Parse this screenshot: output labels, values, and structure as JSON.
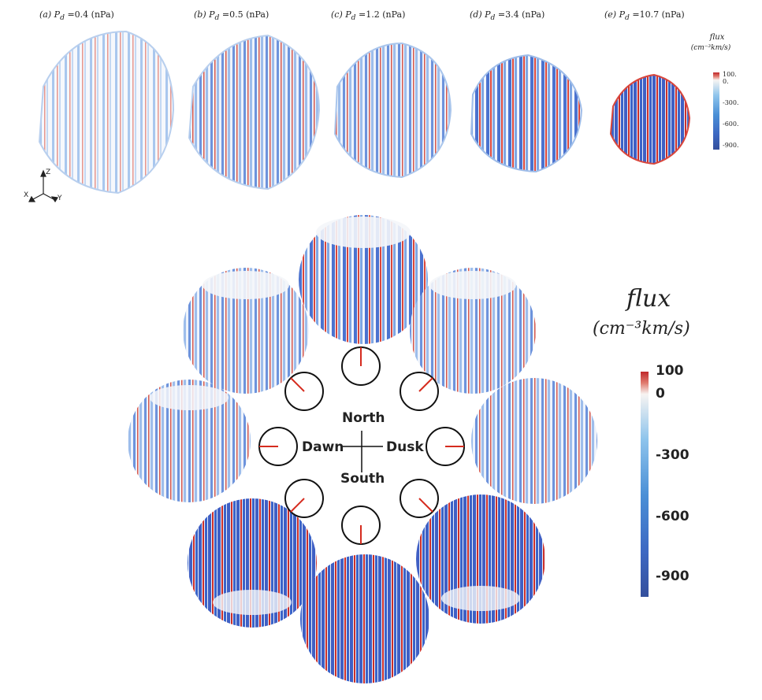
{
  "panels": [
    {
      "tag": "(a)",
      "pd_symbol": "P",
      "pd_sub": "d",
      "value": "=0.4",
      "unit": "(nPa)"
    },
    {
      "tag": "(b)",
      "pd_symbol": "P",
      "pd_sub": "d",
      "value": "=0.5",
      "unit": "(nPa)"
    },
    {
      "tag": "(c)",
      "pd_symbol": "P",
      "pd_sub": "d",
      "value": "=1.2",
      "unit": "(nPa)"
    },
    {
      "tag": "(d)",
      "pd_symbol": "P",
      "pd_sub": "d",
      "value": "=3.4",
      "unit": "(nPa)"
    },
    {
      "tag": "(e)",
      "pd_symbol": "P",
      "pd_sub": "d",
      "value": "=10.7",
      "unit": "(nPa)"
    }
  ],
  "small_colorbar": {
    "title": "flux",
    "unit": "(cm⁻³km/s)",
    "ticks": [
      "100.",
      "0.",
      "-300.",
      "-600.",
      "-900."
    ]
  },
  "big_colorbar": {
    "title": "flux",
    "unit": "(cm⁻³km/s)",
    "ticks": [
      "100",
      "0",
      "-300",
      "-600",
      "-900"
    ]
  },
  "axes_triad": {
    "z": "Z",
    "x": "X",
    "y": "Y"
  },
  "compass": {
    "north": "North",
    "south": "South",
    "dawn": "Dawn",
    "dusk": "Dusk"
  },
  "colors": {
    "red": "#c8342c",
    "blue": "#3b5fbf",
    "light_blue": "#9fc4ec",
    "white": "#f4f6fa"
  }
}
